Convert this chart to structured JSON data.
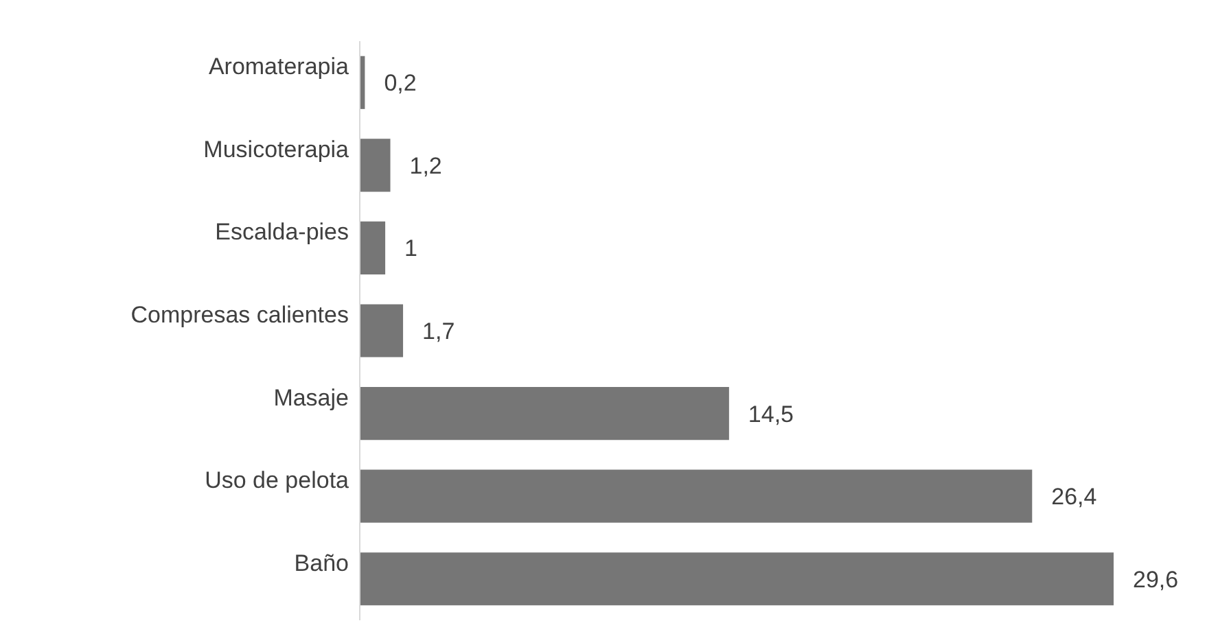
{
  "chart_data": {
    "type": "bar",
    "orientation": "horizontal",
    "categories": [
      "Aromaterapia",
      "Musicoterapia",
      "Escalda-pies",
      "Compresas calientes",
      "Masaje",
      "Uso de pelota",
      "Baño"
    ],
    "values": [
      0.2,
      1.2,
      1,
      1.7,
      14.5,
      26.4,
      29.6
    ],
    "value_labels": [
      "0,2",
      "1,2",
      "1",
      "1,7",
      "14,5",
      "26,4",
      "29,6"
    ],
    "color": "#767676"
  }
}
